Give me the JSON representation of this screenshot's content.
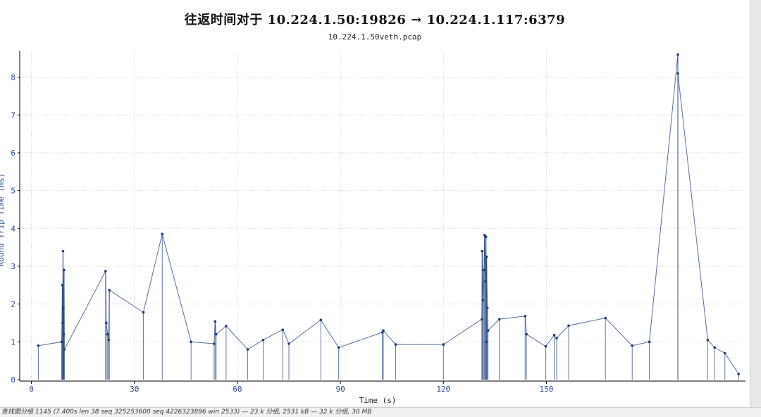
{
  "window": {
    "title": "往返时间对于 10.224.1.50:19826 → 10.224.1.117:6379",
    "subtitle": "10.224.1.50veth.pcap",
    "status": "查找图分组 1145 (7.400s len 38 seq 325253600 seq 4226323896 win 2533) — 23.k 分组, 2531 kB — 32.k 分组, 30 MB"
  },
  "chart_data": {
    "type": "scatter",
    "xlabel": "Time (s)",
    "ylabel": "Round Trip Time (ms)",
    "xlim": [
      -3,
      208
    ],
    "ylim": [
      0,
      8.7
    ],
    "xticks": [
      0,
      30,
      60,
      90,
      120,
      150
    ],
    "yticks": [
      0,
      1,
      2,
      3,
      4,
      5,
      6,
      7,
      8
    ],
    "grid": true,
    "series": [
      {
        "color": "#1f3f7a",
        "points": [
          [
            2.0,
            0.9
          ],
          [
            9.2,
            3.4
          ],
          [
            9.5,
            2.9
          ],
          [
            9.0,
            2.5
          ],
          [
            9.3,
            1.9
          ],
          [
            9.1,
            1.5
          ],
          [
            9.4,
            1.2
          ],
          [
            8.8,
            1.0
          ],
          [
            9.6,
            0.8
          ],
          [
            21.6,
            2.87
          ],
          [
            22.7,
            2.37
          ],
          [
            21.8,
            1.5
          ],
          [
            22.2,
            1.2
          ],
          [
            22.5,
            1.05
          ],
          [
            32.6,
            1.78
          ],
          [
            38.1,
            3.85
          ],
          [
            46.5,
            1.0
          ],
          [
            53.5,
            1.54
          ],
          [
            53.8,
            1.2
          ],
          [
            53.2,
            0.95
          ],
          [
            56.7,
            1.42
          ],
          [
            63.0,
            0.8
          ],
          [
            67.5,
            1.05
          ],
          [
            73.2,
            1.32
          ],
          [
            75.0,
            0.95
          ],
          [
            84.3,
            1.58
          ],
          [
            89.5,
            0.85
          ],
          [
            102.5,
            1.3
          ],
          [
            102.2,
            1.25
          ],
          [
            106.1,
            0.93
          ],
          [
            120.0,
            0.93
          ],
          [
            131.3,
            3.4
          ],
          [
            132.0,
            3.82
          ],
          [
            132.4,
            3.78
          ],
          [
            132.6,
            3.25
          ],
          [
            131.8,
            2.9
          ],
          [
            132.2,
            2.6
          ],
          [
            131.5,
            2.1
          ],
          [
            132.8,
            1.9
          ],
          [
            131.2,
            1.6
          ],
          [
            133.0,
            1.3
          ],
          [
            132.5,
            1.0
          ],
          [
            136.3,
            1.6
          ],
          [
            143.8,
            1.68
          ],
          [
            144.2,
            1.2
          ],
          [
            149.8,
            0.88
          ],
          [
            152.3,
            1.18
          ],
          [
            153.0,
            1.1
          ],
          [
            156.5,
            1.43
          ],
          [
            167.2,
            1.63
          ],
          [
            175.0,
            0.9
          ],
          [
            180.0,
            1.0
          ],
          [
            188.3,
            8.6
          ],
          [
            188.3,
            8.1
          ],
          [
            197.0,
            1.05
          ],
          [
            199.0,
            0.85
          ],
          [
            202.0,
            0.7
          ],
          [
            206.0,
            0.15
          ]
        ]
      }
    ]
  }
}
